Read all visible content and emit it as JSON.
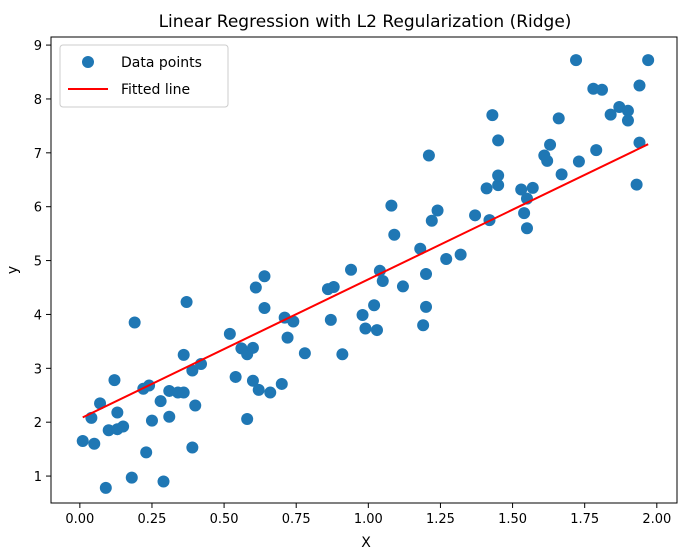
{
  "chart_data": {
    "type": "scatter",
    "title": "Linear Regression with L2 Regularization (Ridge)",
    "xlabel": "X",
    "ylabel": "y",
    "xlim": [
      -0.1,
      2.07
    ],
    "ylim": [
      0.5,
      9.15
    ],
    "xticks": [
      "0.00",
      "0.25",
      "0.50",
      "0.75",
      "1.00",
      "1.25",
      "1.50",
      "1.75",
      "2.00"
    ],
    "yticks": [
      "1",
      "2",
      "3",
      "4",
      "5",
      "6",
      "7",
      "8",
      "9"
    ],
    "grid": false,
    "legend": {
      "location": "upper-left",
      "entries": [
        "Data points",
        "Fitted line"
      ]
    },
    "colors": {
      "points": "#1f77b4",
      "line": "#ff0000"
    },
    "series": [
      {
        "name": "Data points",
        "type": "scatter",
        "points": [
          [
            0.01,
            1.65
          ],
          [
            0.04,
            2.08
          ],
          [
            0.05,
            1.6
          ],
          [
            0.07,
            2.35
          ],
          [
            0.09,
            0.78
          ],
          [
            0.1,
            1.85
          ],
          [
            0.12,
            2.78
          ],
          [
            0.13,
            2.18
          ],
          [
            0.13,
            1.87
          ],
          [
            0.15,
            1.92
          ],
          [
            0.18,
            0.97
          ],
          [
            0.19,
            3.85
          ],
          [
            0.22,
            2.62
          ],
          [
            0.23,
            1.44
          ],
          [
            0.24,
            2.68
          ],
          [
            0.25,
            2.03
          ],
          [
            0.28,
            2.39
          ],
          [
            0.29,
            0.9
          ],
          [
            0.31,
            2.58
          ],
          [
            0.31,
            2.1
          ],
          [
            0.34,
            2.55
          ],
          [
            0.36,
            3.25
          ],
          [
            0.36,
            2.55
          ],
          [
            0.37,
            4.23
          ],
          [
            0.39,
            2.96
          ],
          [
            0.39,
            1.53
          ],
          [
            0.4,
            2.31
          ],
          [
            0.42,
            3.08
          ],
          [
            0.52,
            3.64
          ],
          [
            0.54,
            2.84
          ],
          [
            0.56,
            3.37
          ],
          [
            0.58,
            3.26
          ],
          [
            0.58,
            2.06
          ],
          [
            0.6,
            2.77
          ],
          [
            0.6,
            3.38
          ],
          [
            0.61,
            4.5
          ],
          [
            0.62,
            2.6
          ],
          [
            0.64,
            4.12
          ],
          [
            0.64,
            4.71
          ],
          [
            0.66,
            2.55
          ],
          [
            0.7,
            2.71
          ],
          [
            0.71,
            3.94
          ],
          [
            0.72,
            3.57
          ],
          [
            0.74,
            3.87
          ],
          [
            0.78,
            3.28
          ],
          [
            0.86,
            4.47
          ],
          [
            0.87,
            3.9
          ],
          [
            0.88,
            4.51
          ],
          [
            0.91,
            3.26
          ],
          [
            0.94,
            4.83
          ],
          [
            0.98,
            3.99
          ],
          [
            0.99,
            3.74
          ],
          [
            1.02,
            4.17
          ],
          [
            1.03,
            3.71
          ],
          [
            1.04,
            4.81
          ],
          [
            1.05,
            4.62
          ],
          [
            1.08,
            6.02
          ],
          [
            1.09,
            5.48
          ],
          [
            1.12,
            4.52
          ],
          [
            1.18,
            5.22
          ],
          [
            1.19,
            3.8
          ],
          [
            1.2,
            4.14
          ],
          [
            1.2,
            4.75
          ],
          [
            1.21,
            6.95
          ],
          [
            1.22,
            5.74
          ],
          [
            1.24,
            5.93
          ],
          [
            1.27,
            5.03
          ],
          [
            1.32,
            5.11
          ],
          [
            1.37,
            5.84
          ],
          [
            1.41,
            6.34
          ],
          [
            1.42,
            5.75
          ],
          [
            1.43,
            7.7
          ],
          [
            1.45,
            6.4
          ],
          [
            1.45,
            7.23
          ],
          [
            1.45,
            6.58
          ],
          [
            1.53,
            6.32
          ],
          [
            1.54,
            5.88
          ],
          [
            1.55,
            6.15
          ],
          [
            1.55,
            5.6
          ],
          [
            1.57,
            6.35
          ],
          [
            1.61,
            6.95
          ],
          [
            1.62,
            6.85
          ],
          [
            1.63,
            7.15
          ],
          [
            1.66,
            7.64
          ],
          [
            1.67,
            6.6
          ],
          [
            1.72,
            8.72
          ],
          [
            1.73,
            6.84
          ],
          [
            1.78,
            8.19
          ],
          [
            1.79,
            7.05
          ],
          [
            1.81,
            8.17
          ],
          [
            1.84,
            7.71
          ],
          [
            1.87,
            7.85
          ],
          [
            1.9,
            7.78
          ],
          [
            1.9,
            7.6
          ],
          [
            1.93,
            6.41
          ],
          [
            1.94,
            8.25
          ],
          [
            1.94,
            7.19
          ],
          [
            1.97,
            8.72
          ]
        ]
      },
      {
        "name": "Fitted line",
        "type": "line",
        "points": [
          [
            0.01,
            2.09
          ],
          [
            1.97,
            7.16
          ]
        ]
      }
    ]
  }
}
